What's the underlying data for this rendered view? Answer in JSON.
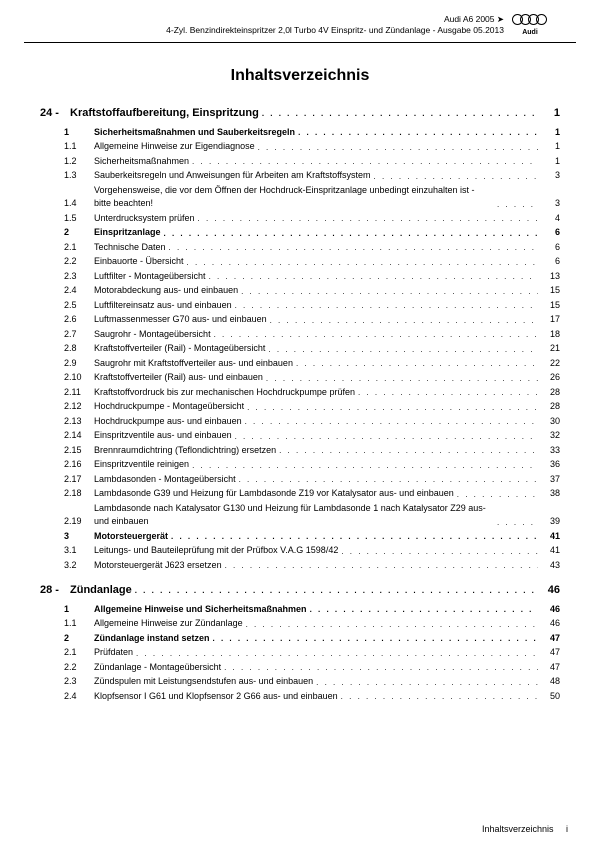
{
  "header": {
    "line1": "Audi A6 2005 ➤",
    "line2": "4-Zyl. Benzindirekteinspritzer 2,0l Turbo 4V Einspritz- und Zündanlage - Ausgabe 05.2013",
    "logo_text": "Audi"
  },
  "title": "Inhaltsverzeichnis",
  "chapters": [
    {
      "num": "24 -",
      "label": "Kraftstoffaufbereitung, Einspritzung",
      "page": "1",
      "rows": [
        {
          "n": "1",
          "l": "Sicherheitsmaßnahmen und Sauberkeitsregeln",
          "p": "1",
          "b": true
        },
        {
          "n": "1.1",
          "l": "Allgemeine Hinweise zur Eigendiagnose",
          "p": "1"
        },
        {
          "n": "1.2",
          "l": "Sicherheitsmaßnahmen",
          "p": "1"
        },
        {
          "n": "1.3",
          "l": "Sauberkeitsregeln und Anweisungen für Arbeiten am Kraftstoffsystem",
          "p": "3"
        },
        {
          "n": "1.4",
          "l": "Vorgehensweise, die vor dem Öffnen der Hochdruck-Einspritzanlage unbedingt einzuhalten ist - bitte beachten!",
          "p": "3",
          "multi": true
        },
        {
          "n": "1.5",
          "l": "Unterdrucksystem prüfen",
          "p": "4"
        },
        {
          "n": "2",
          "l": "Einspritzanlage",
          "p": "6",
          "b": true
        },
        {
          "n": "2.1",
          "l": "Technische Daten",
          "p": "6"
        },
        {
          "n": "2.2",
          "l": "Einbauorte - Übersicht",
          "p": "6"
        },
        {
          "n": "2.3",
          "l": "Luftfilter - Montageübersicht",
          "p": "13"
        },
        {
          "n": "2.4",
          "l": "Motorabdeckung aus- und einbauen",
          "p": "15"
        },
        {
          "n": "2.5",
          "l": "Luftfiltereinsatz aus- und einbauen",
          "p": "15"
        },
        {
          "n": "2.6",
          "l": "Luftmassenmesser G70 aus- und einbauen",
          "p": "17"
        },
        {
          "n": "2.7",
          "l": "Saugrohr - Montageübersicht",
          "p": "18"
        },
        {
          "n": "2.8",
          "l": "Kraftstoffverteiler (Rail) - Montageübersicht",
          "p": "21"
        },
        {
          "n": "2.9",
          "l": "Saugrohr mit Kraftstoffverteiler aus- und einbauen",
          "p": "22"
        },
        {
          "n": "2.10",
          "l": "Kraftstoffverteiler (Rail) aus- und einbauen",
          "p": "26"
        },
        {
          "n": "2.11",
          "l": "Kraftstoffvordruck bis zur mechanischen Hochdruckpumpe prüfen",
          "p": "28"
        },
        {
          "n": "2.12",
          "l": "Hochdruckpumpe - Montageübersicht",
          "p": "28"
        },
        {
          "n": "2.13",
          "l": "Hochdruckpumpe aus- und einbauen",
          "p": "30"
        },
        {
          "n": "2.14",
          "l": "Einspritzventile aus- und einbauen",
          "p": "32"
        },
        {
          "n": "2.15",
          "l": "Brennraumdichtring (Teflondichtring) ersetzen",
          "p": "33"
        },
        {
          "n": "2.16",
          "l": "Einspritzventile reinigen",
          "p": "36"
        },
        {
          "n": "2.17",
          "l": "Lambdasonden - Montageübersicht",
          "p": "37"
        },
        {
          "n": "2.18",
          "l": "Lambdasonde G39 und Heizung für Lambdasonde Z19 vor Katalysator aus- und einbauen",
          "p": "38",
          "multi": true
        },
        {
          "n": "2.19",
          "l": "Lambdasonde nach Katalysator G130 und Heizung für Lambdasonde 1 nach Katalysator Z29 aus- und einbauen",
          "p": "39",
          "multi": true
        },
        {
          "n": "3",
          "l": "Motorsteuergerät",
          "p": "41",
          "b": true
        },
        {
          "n": "3.1",
          "l": "Leitungs- und Bauteileprüfung mit der Prüfbox V.A.G 1598/42",
          "p": "41"
        },
        {
          "n": "3.2",
          "l": "Motorsteuergerät J623 ersetzen",
          "p": "43"
        }
      ]
    },
    {
      "num": "28 -",
      "label": "Zündanlage",
      "page": "46",
      "rows": [
        {
          "n": "1",
          "l": "Allgemeine Hinweise und Sicherheitsmaßnahmen",
          "p": "46",
          "b": true
        },
        {
          "n": "1.1",
          "l": "Allgemeine Hinweise zur Zündanlage",
          "p": "46"
        },
        {
          "n": "2",
          "l": "Zündanlage instand setzen",
          "p": "47",
          "b": true
        },
        {
          "n": "2.1",
          "l": "Prüfdaten",
          "p": "47"
        },
        {
          "n": "2.2",
          "l": "Zündanlage - Montageübersicht",
          "p": "47"
        },
        {
          "n": "2.3",
          "l": "Zündspulen mit Leistungsendstufen aus- und einbauen",
          "p": "48"
        },
        {
          "n": "2.4",
          "l": "Klopfsensor I G61 und Klopfsensor 2 G66 aus- und einbauen",
          "p": "50"
        }
      ]
    }
  ],
  "footer": {
    "label": "Inhaltsverzeichnis",
    "page": "i"
  }
}
